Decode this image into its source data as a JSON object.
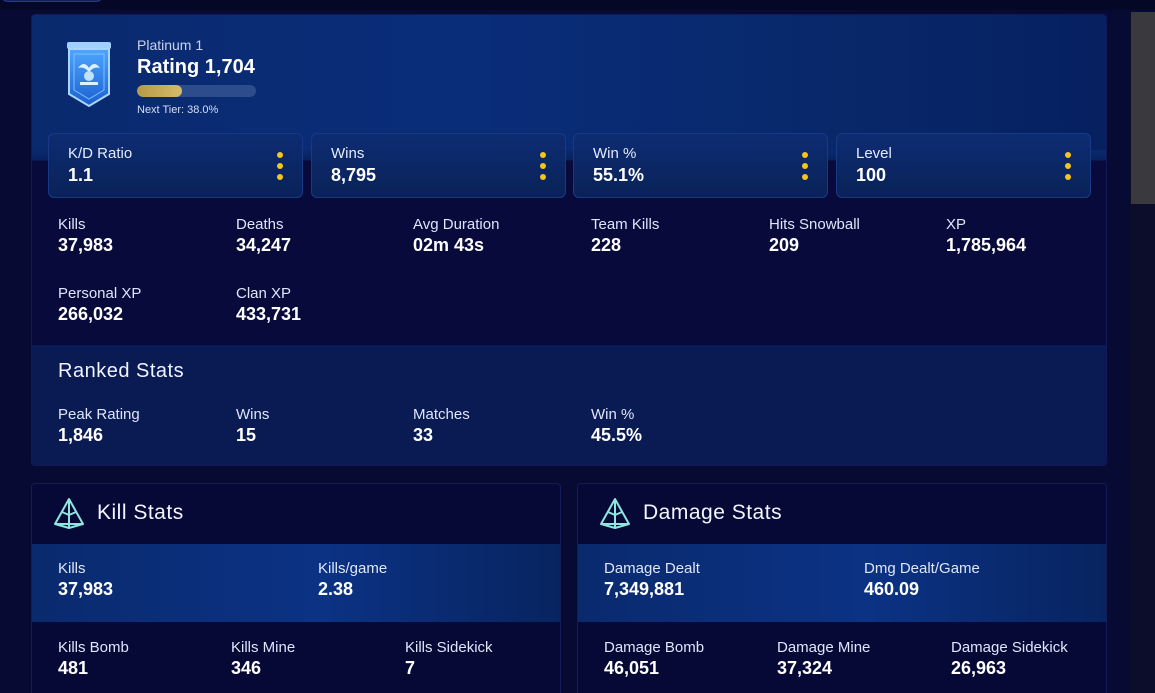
{
  "colors": {
    "accent_gold": "#f5c519",
    "bg": "#070a33",
    "panel": "#0a2a6e",
    "icon_teal": "#8fe6e0"
  },
  "rank": {
    "tier": "Platinum 1",
    "rating": "Rating 1,704",
    "progress_fraction": 0.38,
    "next_tier": "Next Tier: 38.0%",
    "badge_icon": "platinum-shield-icon"
  },
  "highlights": [
    {
      "label": "K/D Ratio",
      "value": "1.1"
    },
    {
      "label": "Wins",
      "value": "8,795"
    },
    {
      "label": "Win %",
      "value": "55.1%"
    },
    {
      "label": "Level",
      "value": "100"
    }
  ],
  "overview": [
    {
      "label": "Kills",
      "value": "37,983"
    },
    {
      "label": "Deaths",
      "value": "34,247"
    },
    {
      "label": "Avg Duration",
      "value": "02m 43s"
    },
    {
      "label": "Team Kills",
      "value": "228"
    },
    {
      "label": "Hits Snowball",
      "value": "209"
    },
    {
      "label": "XP",
      "value": "1,785,964"
    },
    {
      "label": "Personal XP",
      "value": "266,032"
    },
    {
      "label": "Clan XP",
      "value": "433,731"
    }
  ],
  "ranked": {
    "title": "Ranked Stats",
    "items": [
      {
        "label": "Peak Rating",
        "value": "1,846"
      },
      {
        "label": "Wins",
        "value": "15"
      },
      {
        "label": "Matches",
        "value": "33"
      },
      {
        "label": "Win %",
        "value": "45.5%"
      }
    ]
  },
  "kill_stats": {
    "title": "Kill Stats",
    "icon": "pyramid-icon",
    "primary": [
      {
        "label": "Kills",
        "value": "37,983"
      },
      {
        "label": "Kills/game",
        "value": "2.38"
      }
    ],
    "secondary": [
      {
        "label": "Kills Bomb",
        "value": "481"
      },
      {
        "label": "Kills Mine",
        "value": "346"
      },
      {
        "label": "Kills Sidekick",
        "value": "7"
      }
    ]
  },
  "damage_stats": {
    "title": "Damage Stats",
    "icon": "pyramid-icon",
    "primary": [
      {
        "label": "Damage Dealt",
        "value": "7,349,881"
      },
      {
        "label": "Dmg Dealt/Game",
        "value": "460.09"
      }
    ],
    "secondary": [
      {
        "label": "Damage Bomb",
        "value": "46,051"
      },
      {
        "label": "Damage Mine",
        "value": "37,324"
      },
      {
        "label": "Damage Sidekick",
        "value": "26,963"
      }
    ]
  }
}
